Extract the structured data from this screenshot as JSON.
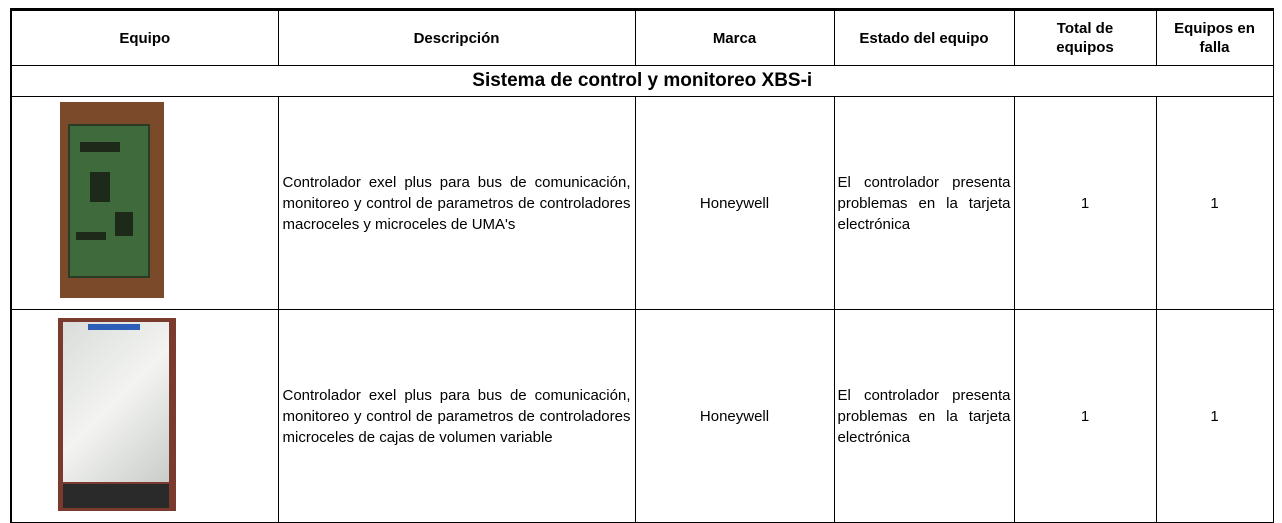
{
  "table": {
    "header": [
      "Equipo",
      "Descripción",
      "Marca",
      "Estado del equipo",
      "Total de equipos",
      "Equipos en falla"
    ],
    "section": "Sistema de control y monitoreo XBS-i",
    "rows": [
      {
        "description": "Controlador exel plus para bus de comunicación, monitoreo y control de parametros de controladores macroceles y microceles de UMA's",
        "brand": "Honeywell",
        "status": "El controlador presenta problemas en la tarjeta electrónica",
        "total": 1,
        "failing": 1
      },
      {
        "description": "Controlador exel plus para bus de comunicación, monitoreo y control de parametros de controladores microceles de cajas de volumen variable",
        "brand": "Honeywell",
        "status": "El controlador presenta problemas en la tarjeta electrónica",
        "total": 1,
        "failing": 1
      }
    ]
  }
}
